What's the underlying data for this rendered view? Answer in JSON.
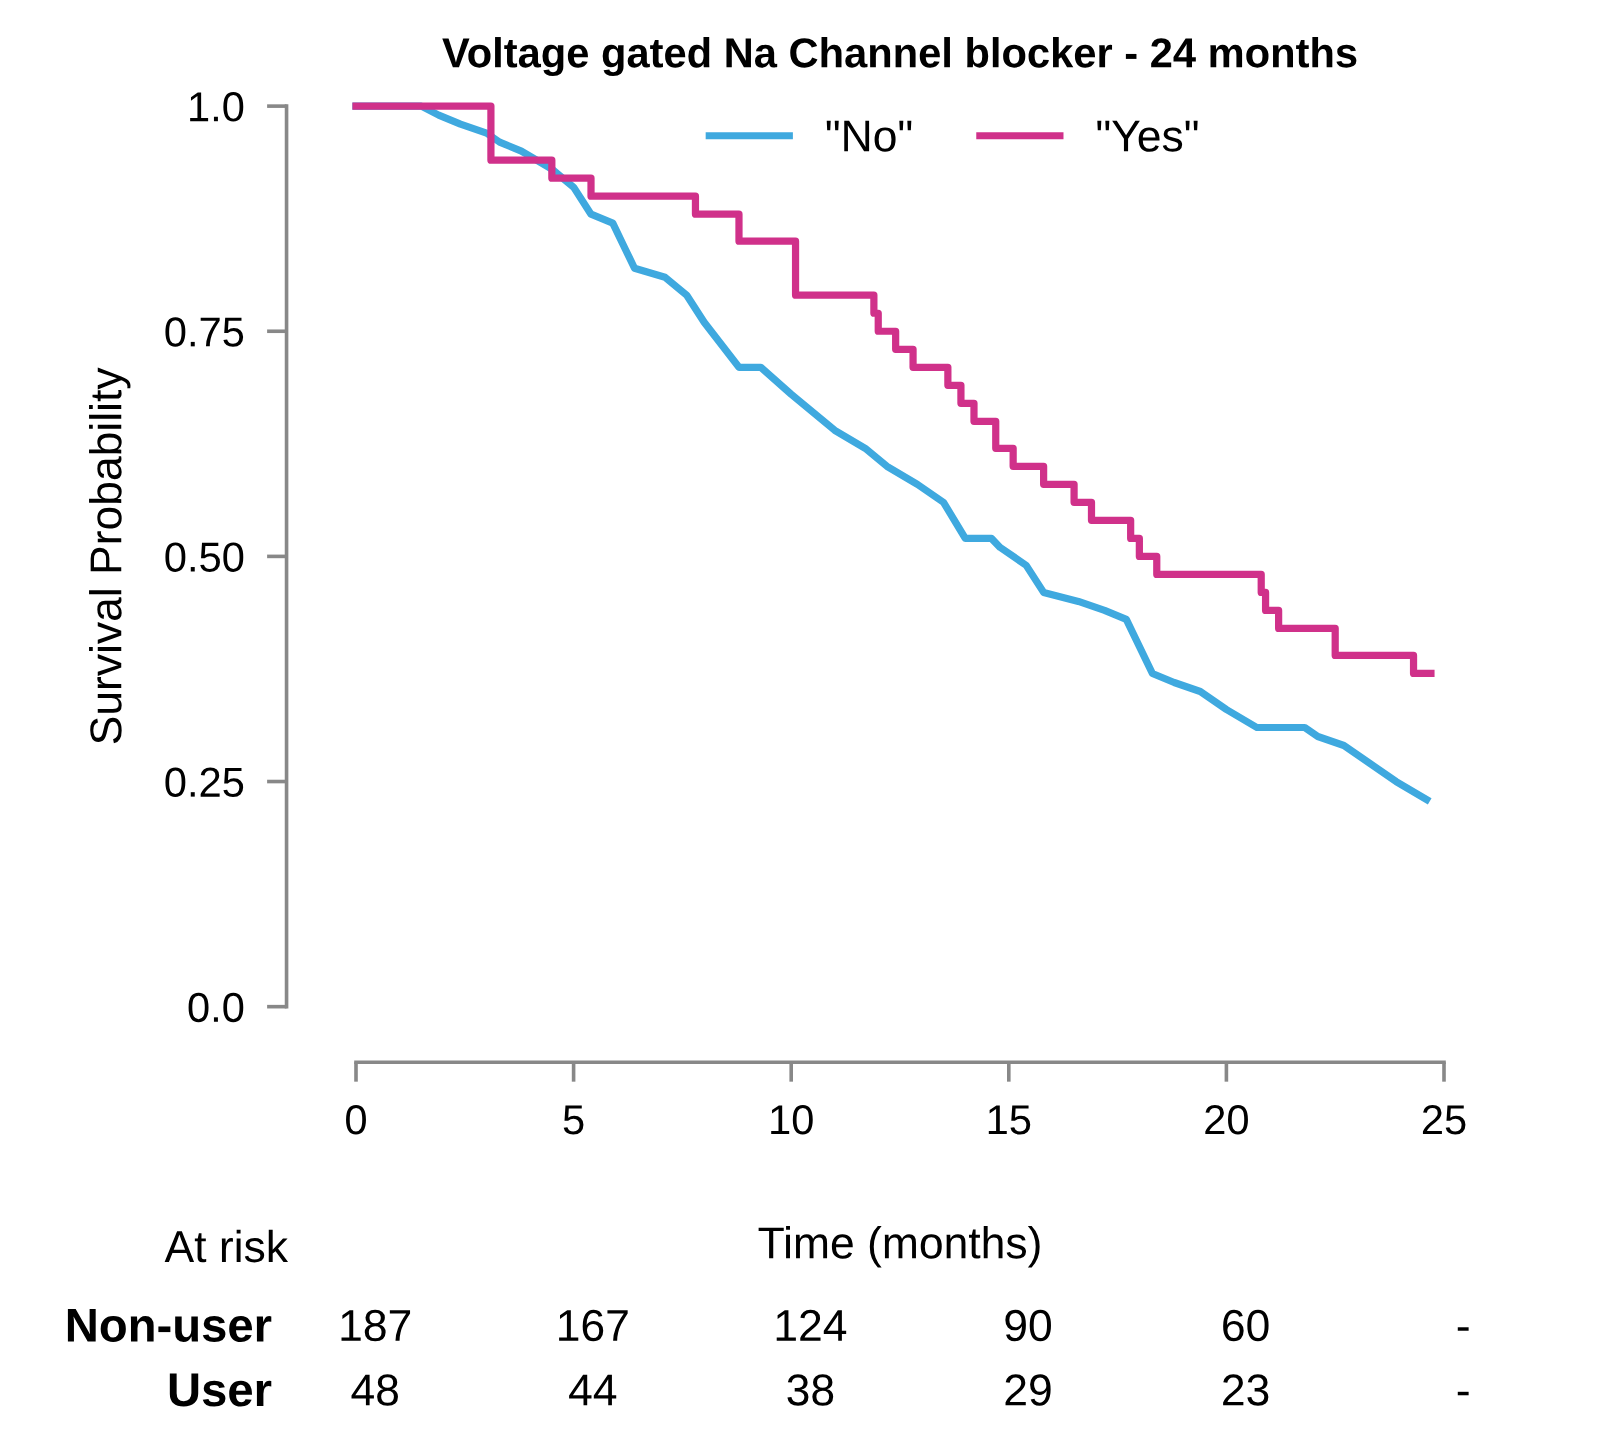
{
  "chart_data": {
    "type": "line",
    "title": "Voltage gated Na Channel blocker - 24 months",
    "xlabel": "Time (months)",
    "ylabel": "Survival Probability",
    "xlim": [
      0,
      25
    ],
    "xticks": [
      0,
      5,
      10,
      15,
      20,
      25
    ],
    "ylim": [
      0,
      1
    ],
    "yticks": [
      {
        "value": 0,
        "label": "0.0"
      },
      0.25,
      {
        "value": 0.5,
        "label": "0.50"
      },
      0.75,
      {
        "value": 1,
        "label": "1.0"
      }
    ],
    "grid": false,
    "legend": "top",
    "marker": "none",
    "line_style": "solid",
    "series": [
      {
        "name": "\"No\"",
        "color": "#3fa9df",
        "x": [
          0,
          1.5,
          1.9,
          2.4,
          3.0,
          3.3,
          3.8,
          4.5,
          5.0,
          5.4,
          5.9,
          6.2,
          6.4,
          7.1,
          7.6,
          8.0,
          8.8,
          9.3,
          10.0,
          11.0,
          11.7,
          12.2,
          12.9,
          13.5,
          14.0,
          14.6,
          14.8,
          15.4,
          15.8,
          16.6,
          17.2,
          17.7,
          18.3,
          18.8,
          19.4,
          20.0,
          20.7,
          21.8,
          22.1,
          22.7,
          23.3,
          23.9,
          24.6
        ],
        "values": [
          1.0,
          1.0,
          0.99,
          0.98,
          0.97,
          0.96,
          0.95,
          0.93,
          0.91,
          0.88,
          0.87,
          0.84,
          0.82,
          0.81,
          0.79,
          0.76,
          0.71,
          0.71,
          0.68,
          0.64,
          0.62,
          0.6,
          0.58,
          0.56,
          0.52,
          0.52,
          0.51,
          0.49,
          0.46,
          0.45,
          0.44,
          0.43,
          0.37,
          0.36,
          0.35,
          0.33,
          0.31,
          0.31,
          0.3,
          0.29,
          0.27,
          0.25,
          0.23
        ]
      },
      {
        "name": "\"Yes\"",
        "color": "#d0318a",
        "type": "step",
        "x": [
          0,
          3.1,
          4.5,
          5.4,
          7.8,
          8.8,
          10.1,
          11.9,
          12.0,
          12.4,
          12.8,
          13.6,
          13.9,
          14.2,
          14.7,
          15.1,
          15.8,
          16.5,
          16.9,
          17.8,
          18.0,
          18.4,
          20.8,
          20.9,
          21.2,
          22.5,
          24.3,
          24.7
        ],
        "values": [
          1.0,
          0.94,
          0.92,
          0.9,
          0.88,
          0.85,
          0.79,
          0.77,
          0.75,
          0.73,
          0.71,
          0.69,
          0.67,
          0.65,
          0.62,
          0.6,
          0.58,
          0.56,
          0.54,
          0.52,
          0.5,
          0.48,
          0.46,
          0.44,
          0.42,
          0.39,
          0.37,
          0.37
        ]
      }
    ],
    "annotations": [
      "At risk",
      "Non-user",
      "187",
      "167",
      "124",
      "90",
      "60",
      "-",
      "User",
      "48",
      "44",
      "38",
      "29",
      "23",
      "-"
    ]
  }
}
